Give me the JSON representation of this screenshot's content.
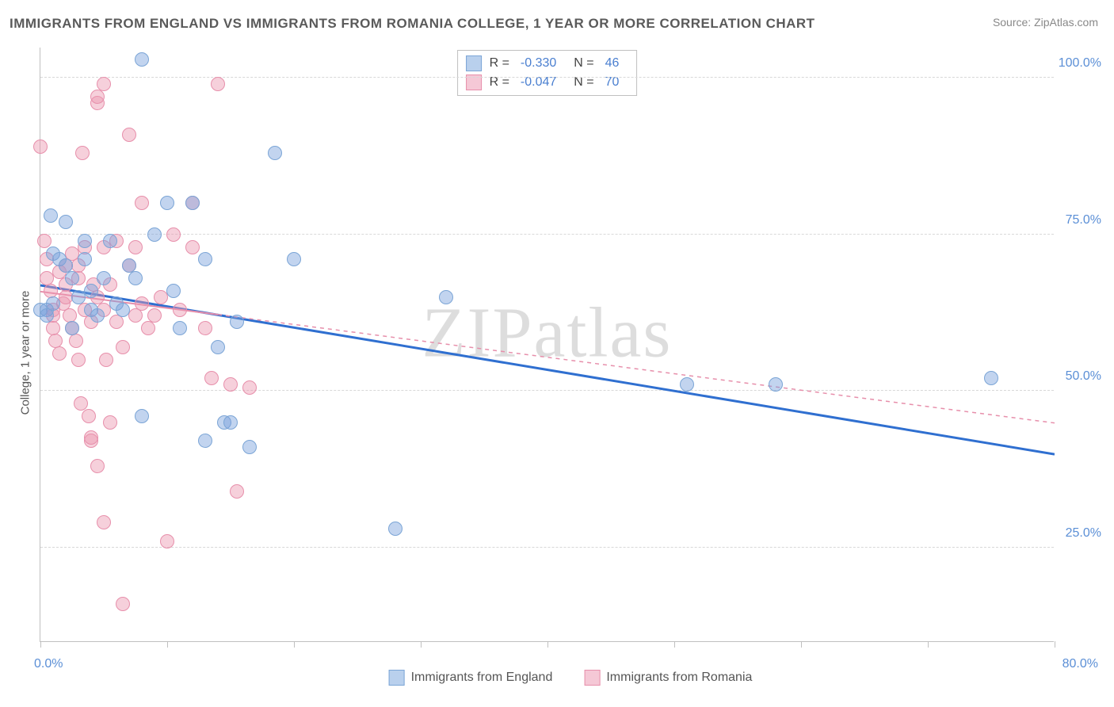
{
  "title": "IMMIGRANTS FROM ENGLAND VS IMMIGRANTS FROM ROMANIA COLLEGE, 1 YEAR OR MORE CORRELATION CHART",
  "source": "Source: ZipAtlas.com",
  "watermark": "ZIPatlas",
  "chart": {
    "type": "scatter",
    "ylabel": "College, 1 year or more",
    "xlim": [
      0,
      80
    ],
    "ylim": [
      10,
      105
    ],
    "ytick_values": [
      25,
      50,
      75,
      100
    ],
    "ytick_labels": [
      "25.0%",
      "50.0%",
      "75.0%",
      "100.0%"
    ],
    "xtick_values": [
      0,
      10,
      20,
      30,
      40,
      50,
      60,
      70,
      80
    ],
    "xtick_label_min": "0.0%",
    "xtick_label_max": "80.0%",
    "background_color": "#ffffff",
    "grid_color": "#d8d8d8",
    "marker_radius": 9,
    "series": [
      {
        "name": "Immigrants from England",
        "fill_color": "rgba(120,160,220,0.45)",
        "stroke_color": "#7ba5d6",
        "swatch_fill": "#b9d0ed",
        "swatch_border": "#7ba5d6",
        "r_value": "-0.330",
        "n_value": "46",
        "regression": {
          "x1": 0,
          "y1": 67,
          "x2": 80,
          "y2": 40,
          "color": "#2f6fd0",
          "dash": "none",
          "width": 3
        },
        "points": [
          [
            0,
            63
          ],
          [
            0.5,
            63
          ],
          [
            0.5,
            62
          ],
          [
            1,
            64
          ],
          [
            0.8,
            78
          ],
          [
            1,
            72
          ],
          [
            1.5,
            71
          ],
          [
            2,
            70
          ],
          [
            2,
            77
          ],
          [
            2.5,
            60
          ],
          [
            2.5,
            68
          ],
          [
            3,
            65
          ],
          [
            3.5,
            71
          ],
          [
            3.5,
            74
          ],
          [
            4,
            63
          ],
          [
            4,
            66
          ],
          [
            4.5,
            62
          ],
          [
            5,
            68
          ],
          [
            5.5,
            74
          ],
          [
            6,
            64
          ],
          [
            6.5,
            63
          ],
          [
            7,
            70
          ],
          [
            7.5,
            68
          ],
          [
            8,
            103
          ],
          [
            8,
            46
          ],
          [
            9,
            75
          ],
          [
            10,
            80
          ],
          [
            10.5,
            66
          ],
          [
            11,
            60
          ],
          [
            12,
            80
          ],
          [
            13,
            42
          ],
          [
            13,
            71
          ],
          [
            14,
            57
          ],
          [
            14.5,
            45
          ],
          [
            15,
            45
          ],
          [
            15.5,
            61
          ],
          [
            16.5,
            41
          ],
          [
            18.5,
            88
          ],
          [
            20,
            71
          ],
          [
            32,
            65
          ],
          [
            28,
            28
          ],
          [
            51,
            51
          ],
          [
            58,
            51
          ],
          [
            75,
            52
          ]
        ]
      },
      {
        "name": "Immigrants from Romania",
        "fill_color": "rgba(235,150,175,0.45)",
        "stroke_color": "#e78fab",
        "swatch_fill": "#f5c8d6",
        "swatch_border": "#e78fab",
        "r_value": "-0.047",
        "n_value": "70",
        "regression": {
          "x1": 0,
          "y1": 66,
          "x2": 80,
          "y2": 45,
          "color": "#e78fab",
          "dash": "5,5",
          "width": 1.5,
          "solid_until": 14
        },
        "points": [
          [
            0,
            89
          ],
          [
            0.3,
            74
          ],
          [
            0.5,
            71
          ],
          [
            0.5,
            68
          ],
          [
            0.8,
            66
          ],
          [
            1,
            63
          ],
          [
            1,
            62
          ],
          [
            1,
            60
          ],
          [
            1.2,
            58
          ],
          [
            1.5,
            56
          ],
          [
            1.5,
            69
          ],
          [
            1.8,
            64
          ],
          [
            2,
            67
          ],
          [
            2,
            65
          ],
          [
            2,
            70
          ],
          [
            2.3,
            62
          ],
          [
            2.5,
            60
          ],
          [
            2.5,
            72
          ],
          [
            2.8,
            58
          ],
          [
            3,
            55
          ],
          [
            3,
            68
          ],
          [
            3,
            70
          ],
          [
            3.2,
            48
          ],
          [
            3.3,
            88
          ],
          [
            3.5,
            63
          ],
          [
            3.5,
            73
          ],
          [
            3.8,
            46
          ],
          [
            4,
            42
          ],
          [
            4,
            42.5
          ],
          [
            4,
            61
          ],
          [
            4.2,
            67
          ],
          [
            4.5,
            96
          ],
          [
            4.5,
            97
          ],
          [
            4.5,
            65
          ],
          [
            4.5,
            38
          ],
          [
            5,
            99
          ],
          [
            5,
            63
          ],
          [
            5,
            73
          ],
          [
            5,
            29
          ],
          [
            5.2,
            55
          ],
          [
            5.5,
            67
          ],
          [
            5.5,
            45
          ],
          [
            6,
            61
          ],
          [
            6,
            74
          ],
          [
            6.5,
            57
          ],
          [
            6.5,
            16
          ],
          [
            7,
            91
          ],
          [
            7,
            70
          ],
          [
            7.5,
            62
          ],
          [
            7.5,
            73
          ],
          [
            8,
            64
          ],
          [
            8,
            80
          ],
          [
            8.5,
            60
          ],
          [
            9,
            62
          ],
          [
            9.5,
            65
          ],
          [
            10,
            26
          ],
          [
            10.5,
            75
          ],
          [
            11,
            63
          ],
          [
            12,
            73
          ],
          [
            12,
            80
          ],
          [
            13,
            60
          ],
          [
            13.5,
            52
          ],
          [
            14,
            99
          ],
          [
            15,
            51
          ],
          [
            15.5,
            34
          ],
          [
            16.5,
            50.5
          ]
        ]
      }
    ],
    "legend_bottom": [
      {
        "label": "Immigrants from England",
        "series": 0
      },
      {
        "label": "Immigrants from Romania",
        "series": 1
      }
    ]
  }
}
